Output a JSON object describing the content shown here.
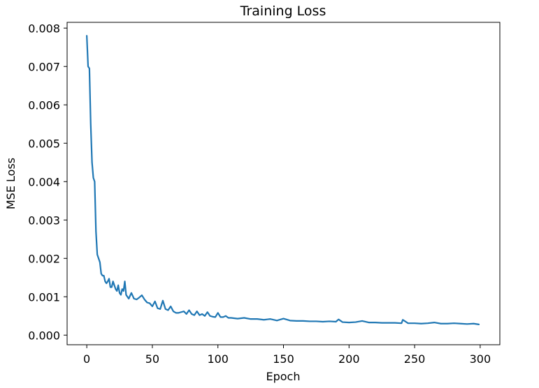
{
  "chart_data": {
    "type": "line",
    "title": "Training Loss",
    "xlabel": "Epoch",
    "ylabel": "MSE Loss",
    "xlim": [
      -15,
      315
    ],
    "ylim": [
      -0.00025,
      0.00815
    ],
    "xticks": [
      0,
      50,
      100,
      150,
      200,
      250,
      300
    ],
    "xtick_labels": [
      "0",
      "50",
      "100",
      "150",
      "200",
      "250",
      "300"
    ],
    "yticks": [
      0.0,
      0.001,
      0.002,
      0.003,
      0.004,
      0.005,
      0.006,
      0.007,
      0.008
    ],
    "ytick_labels": [
      "0.000",
      "0.001",
      "0.002",
      "0.003",
      "0.004",
      "0.005",
      "0.006",
      "0.007",
      "0.008"
    ],
    "grid": false,
    "series": [
      {
        "color": "#1f77b4",
        "x": [
          0,
          1,
          2,
          3,
          4,
          5,
          6,
          7,
          8,
          9,
          10,
          11,
          12,
          13,
          14,
          15,
          16,
          17,
          18,
          19,
          20,
          21,
          22,
          23,
          24,
          25,
          26,
          27,
          28,
          29,
          30,
          32,
          34,
          36,
          38,
          40,
          42,
          44,
          46,
          48,
          50,
          52,
          54,
          56,
          58,
          60,
          62,
          64,
          66,
          68,
          70,
          72,
          74,
          76,
          78,
          80,
          82,
          84,
          86,
          88,
          90,
          92,
          94,
          96,
          98,
          100,
          102,
          104,
          106,
          108,
          110,
          115,
          120,
          125,
          130,
          135,
          140,
          145,
          150,
          155,
          160,
          165,
          170,
          175,
          180,
          185,
          190,
          192,
          195,
          200,
          205,
          210,
          215,
          220,
          225,
          230,
          235,
          240,
          241,
          245,
          250,
          255,
          260,
          265,
          270,
          275,
          280,
          285,
          290,
          295,
          299
        ],
        "y": [
          0.0078,
          0.007,
          0.00695,
          0.0055,
          0.0045,
          0.0041,
          0.004,
          0.0027,
          0.0021,
          0.002,
          0.0019,
          0.0016,
          0.00155,
          0.00155,
          0.0014,
          0.00135,
          0.0014,
          0.00147,
          0.00125,
          0.00125,
          0.0014,
          0.0013,
          0.0012,
          0.00115,
          0.0013,
          0.0011,
          0.00105,
          0.0012,
          0.00115,
          0.0014,
          0.00105,
          0.00095,
          0.0011,
          0.00095,
          0.00093,
          0.00098,
          0.00104,
          0.00093,
          0.00085,
          0.00083,
          0.00075,
          0.00088,
          0.0007,
          0.00068,
          0.0009,
          0.00068,
          0.00065,
          0.00075,
          0.00062,
          0.00058,
          0.00058,
          0.0006,
          0.00062,
          0.00055,
          0.00065,
          0.00055,
          0.00052,
          0.00062,
          0.00052,
          0.00055,
          0.0005,
          0.0006,
          0.0005,
          0.00048,
          0.00047,
          0.00058,
          0.00047,
          0.00047,
          0.0005,
          0.00045,
          0.00045,
          0.00043,
          0.00045,
          0.00042,
          0.00042,
          0.0004,
          0.00042,
          0.00038,
          0.00043,
          0.00038,
          0.00037,
          0.00037,
          0.00036,
          0.00036,
          0.00035,
          0.00036,
          0.00035,
          0.00041,
          0.00034,
          0.00033,
          0.00034,
          0.00037,
          0.00033,
          0.00033,
          0.00032,
          0.00032,
          0.00032,
          0.00031,
          0.0004,
          0.00031,
          0.00031,
          0.0003,
          0.00031,
          0.00033,
          0.0003,
          0.0003,
          0.00031,
          0.0003,
          0.00029,
          0.0003,
          0.00028
        ]
      }
    ]
  }
}
